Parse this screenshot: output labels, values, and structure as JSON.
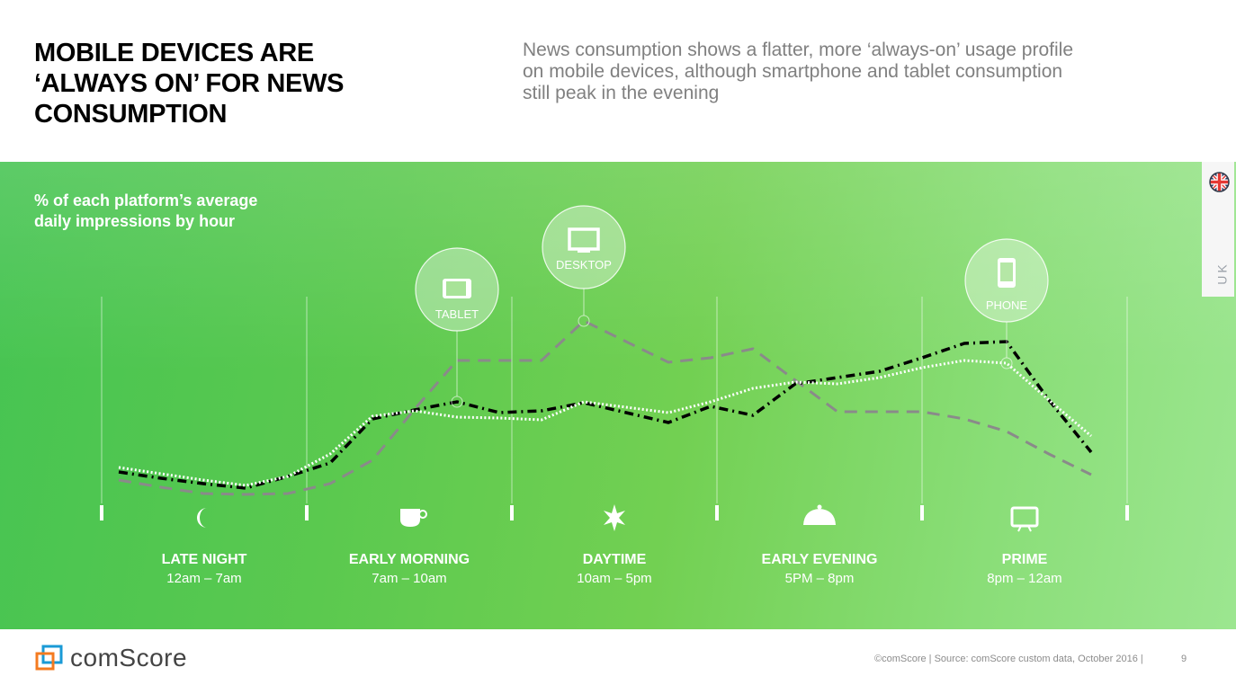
{
  "header": {
    "title": "MOBILE DEVICES ARE\n‘ALWAYS ON’ FOR NEWS\nCONSUMPTION",
    "subtitle": "News consumption shows a flatter, more ‘always-on’ usage profile\non mobile devices, although smartphone and tablet consumption\nstill peak in the evening"
  },
  "region": {
    "label": "UK",
    "icon": "uk-flag-icon"
  },
  "chart_data": {
    "type": "line",
    "title": "% of each platform’s average\ndaily impressions by hour",
    "x": [
      0,
      1,
      2,
      3,
      4,
      5,
      6,
      7,
      8,
      9,
      10,
      11,
      12,
      13,
      14,
      15,
      16,
      17,
      18,
      19,
      20,
      21,
      22,
      23
    ],
    "y_axis_shown": false,
    "grid": false,
    "series": [
      {
        "name": "DESKTOP",
        "style": "dashed",
        "color": "#8a8a8a",
        "icon": "desktop-monitor-icon",
        "marker_hour": 11,
        "values": [
          13,
          9,
          5.5,
          5,
          5.5,
          11,
          24,
          52.5,
          79.5,
          79.5,
          79.5,
          101.5,
          90,
          78.5,
          81,
          86,
          68.5,
          51,
          51,
          51,
          47,
          40,
          27.5,
          16
        ]
      },
      {
        "name": "TABLET",
        "style": "dash-dot",
        "color": "#000000",
        "icon": "tablet-icon",
        "marker_hour": 8,
        "values": [
          17.5,
          14,
          11,
          8.5,
          15,
          22.5,
          47,
          52,
          56.5,
          50.5,
          51.5,
          56,
          50.5,
          45,
          54,
          49,
          66.5,
          70,
          73.5,
          81,
          89,
          90,
          57.5,
          28.5
        ]
      },
      {
        "name": "PHONE",
        "style": "dotted",
        "color": "#ffffff",
        "icon": "phone-icon",
        "marker_hour": 21,
        "values": [
          20,
          16.5,
          13,
          10,
          15,
          27.5,
          48.5,
          51.5,
          48,
          47.5,
          46.5,
          56.5,
          53.5,
          50.5,
          56.5,
          64,
          67.5,
          66.5,
          70,
          75.5,
          79.5,
          78,
          57.5,
          37.5
        ]
      }
    ],
    "dayparts": [
      {
        "name": "LATE NIGHT",
        "time": "12am – 7am",
        "icon": "moon-icon"
      },
      {
        "name": "EARLY MORNING",
        "time": "7am – 10am",
        "icon": "coffee-cup-icon"
      },
      {
        "name": "DAYTIME",
        "time": "10am – 5pm",
        "icon": "sun-icon"
      },
      {
        "name": "EARLY EVENING",
        "time": "5PM – 8pm",
        "icon": "dinner-cloche-icon"
      },
      {
        "name": "PRIME",
        "time": "8pm – 12am",
        "icon": "tv-icon"
      }
    ]
  },
  "footer": {
    "brand": "comScore",
    "source": "©comScore  |  Source: comScore custom data, October 2016 |",
    "page": "9"
  },
  "colors": {
    "band_left": "#46c452",
    "band_right": "#9ce690",
    "title": "#000000",
    "subtitle": "#808080"
  }
}
